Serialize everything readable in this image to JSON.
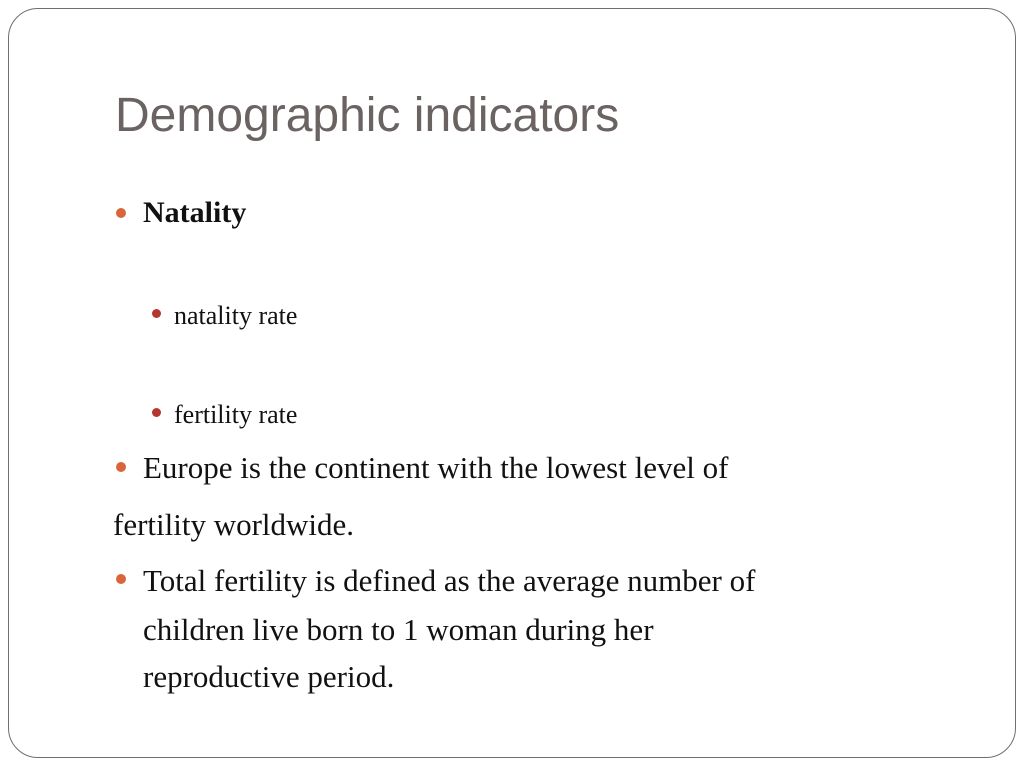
{
  "slide": {
    "title": "Demographic indicators",
    "bullets": [
      {
        "text": "Natality",
        "sub_items": [
          "natality rate",
          "fertility rate"
        ]
      },
      {
        "lines": [
          "Europe is the continent with the lowest level of",
          "fertility worldwide."
        ]
      },
      {
        "lines": [
          "Total fertility is defined as the average number of",
          "children live born to 1 woman during her",
          "reproductive period."
        ]
      }
    ]
  },
  "colors": {
    "title": "#6b6262",
    "text": "#111111",
    "bullet_level1": "#d9653b",
    "bullet_level2": "#b6362f",
    "frame_border": "#6f6f6f"
  }
}
